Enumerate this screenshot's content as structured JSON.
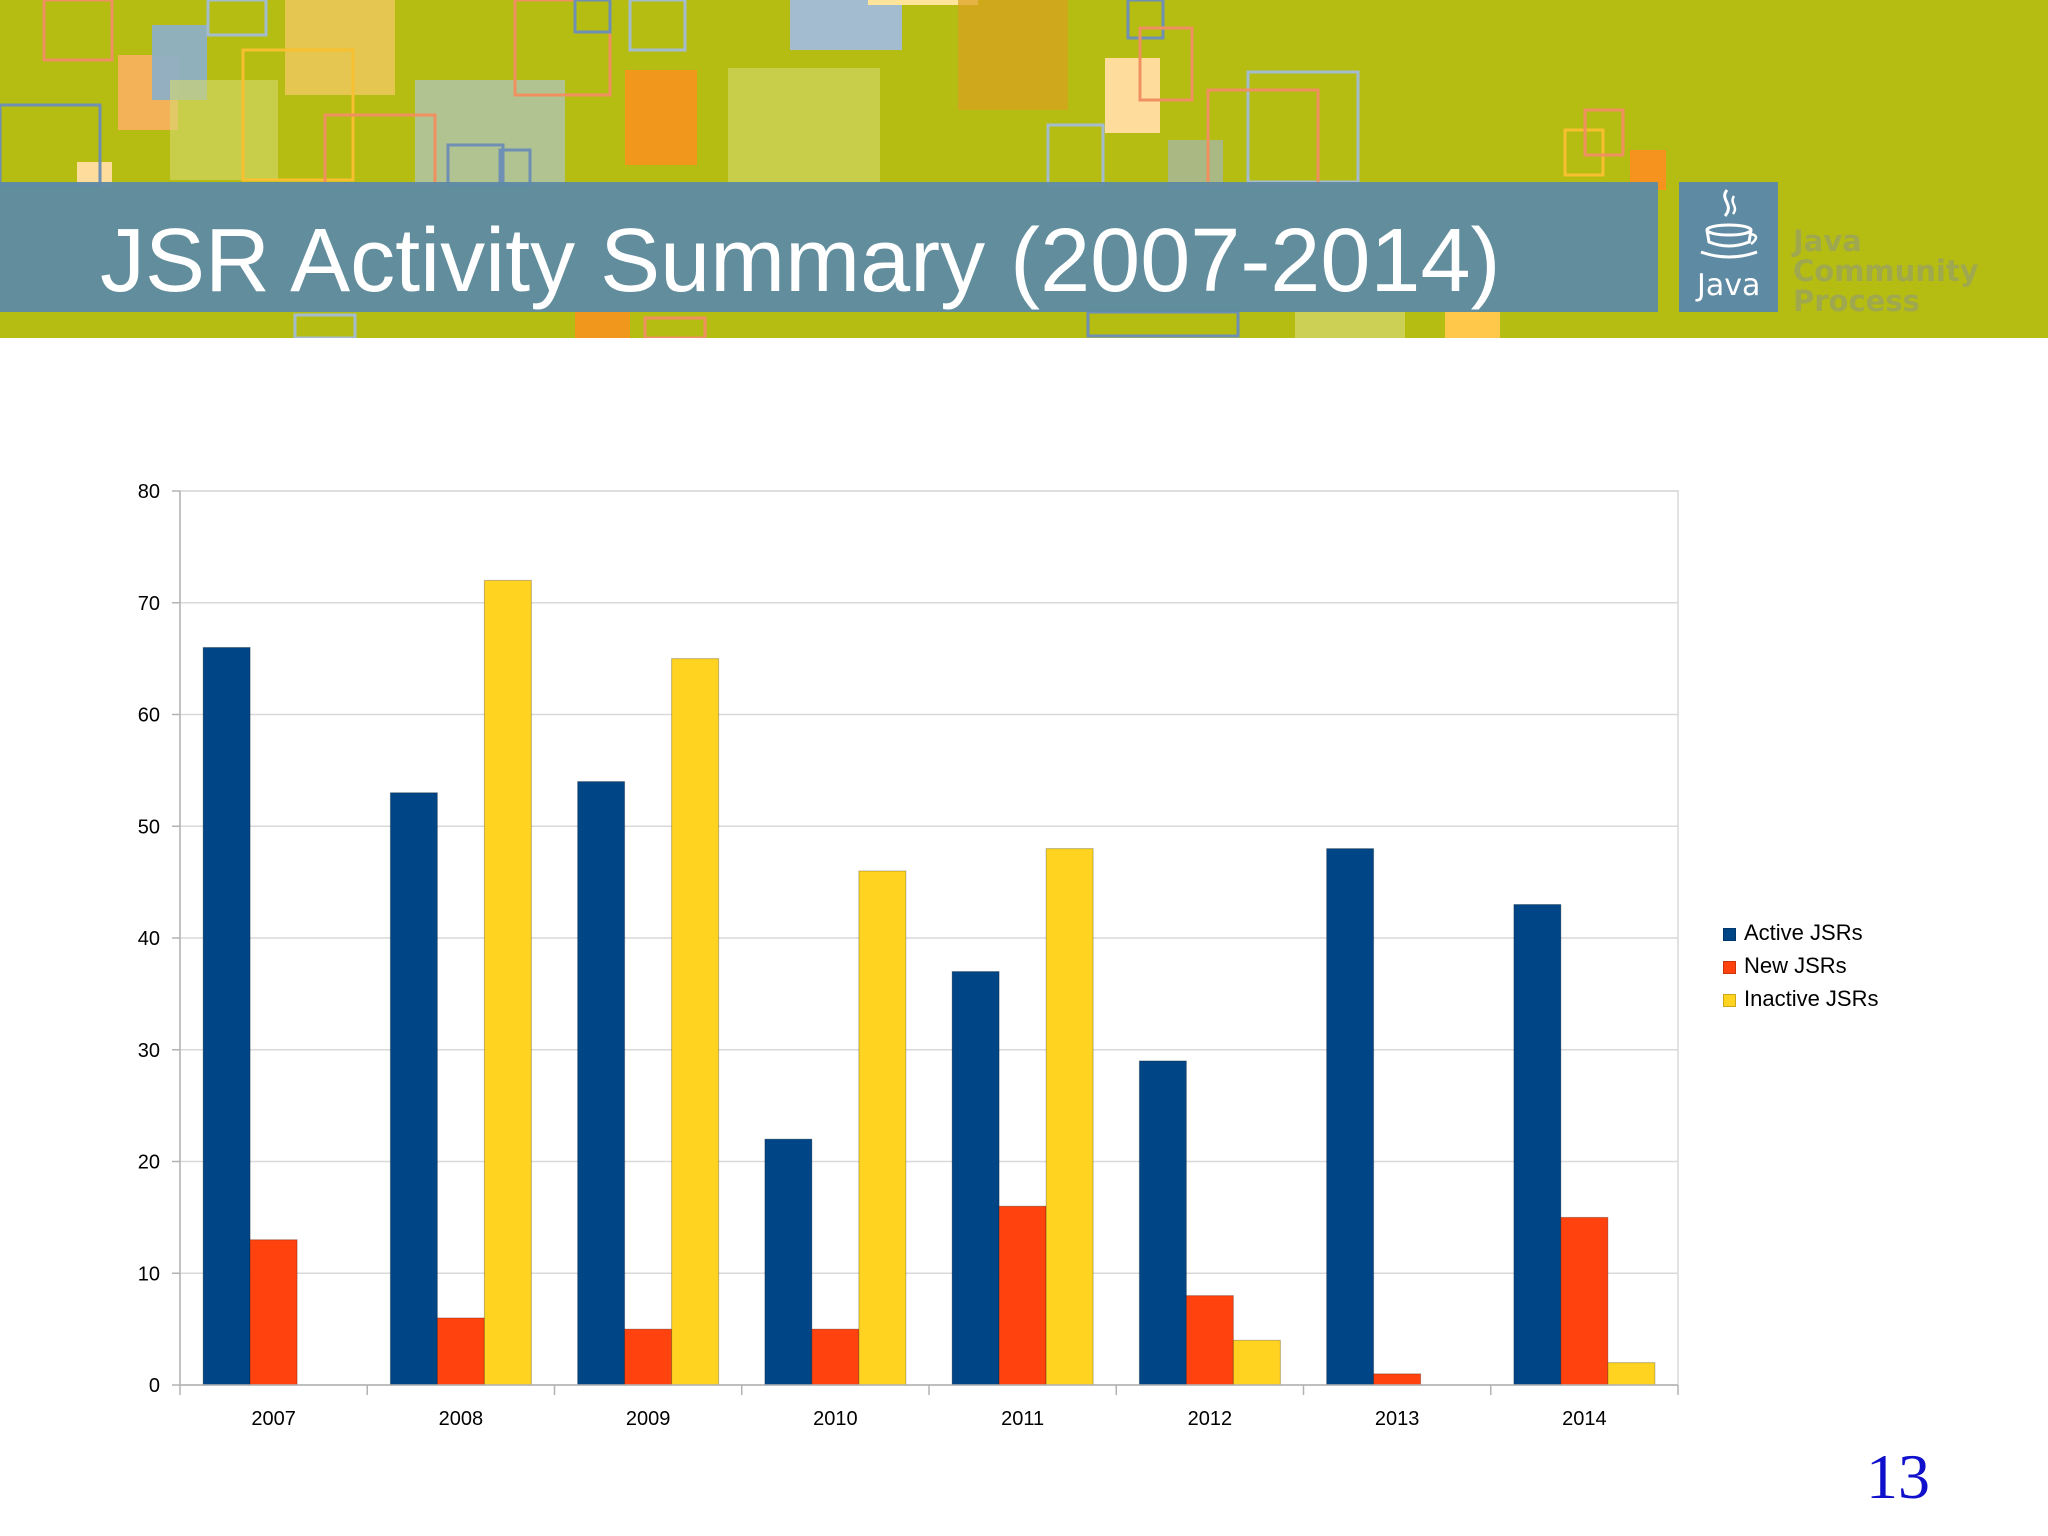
{
  "slide": {
    "title": "JSR Activity Summary (2007-2014)",
    "page_number": "13"
  },
  "logo": {
    "word": "Java",
    "org_line1": "Java",
    "org_line2": "Community",
    "org_line3": "Process"
  },
  "colors": {
    "banner_background": "#b6bd12",
    "title_bar": "#5f8aa3",
    "active": "#004586",
    "new": "#ff420e",
    "inactive": "#ffd320",
    "grid": "#d9d9d9",
    "page_number": "#1010cc"
  },
  "chart_data": {
    "type": "bar",
    "categories": [
      "2007",
      "2008",
      "2009",
      "2010",
      "2011",
      "2012",
      "2013",
      "2014"
    ],
    "series": [
      {
        "name": "Active JSRs",
        "values": [
          66,
          53,
          54,
          22,
          37,
          29,
          48,
          43
        ]
      },
      {
        "name": "New JSRs",
        "values": [
          13,
          6,
          5,
          5,
          16,
          8,
          1,
          15
        ]
      },
      {
        "name": "Inactive JSRs",
        "values": [
          0,
          72,
          65,
          46,
          48,
          4,
          0,
          2
        ]
      }
    ],
    "ylim": [
      0,
      80
    ],
    "y_ticks": [
      "0",
      "10",
      "20",
      "30",
      "40",
      "50",
      "60",
      "70",
      "80"
    ],
    "grid": true,
    "legend_position": "right"
  }
}
